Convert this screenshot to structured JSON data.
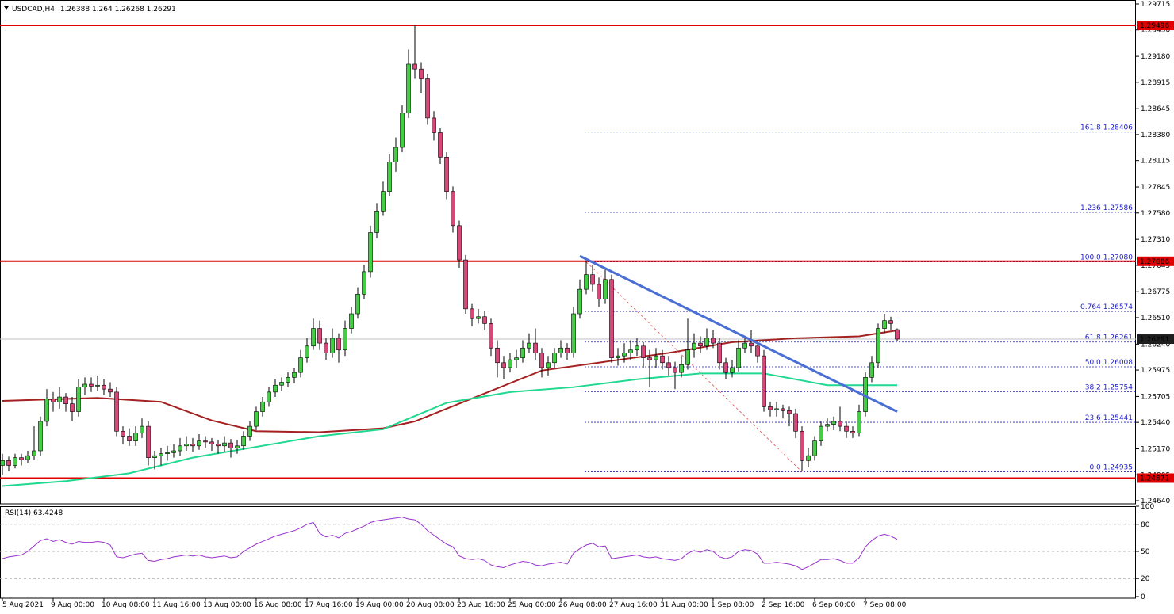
{
  "chart_data": {
    "type": "candlestick",
    "symbol": "USDCAD,H4",
    "up_color": "#44cc44",
    "down_color": "#d9467a",
    "ylim": [
      1.2464,
      1.29715
    ],
    "yticks": [
      1.29715,
      {
        "value": 1.2945,
        "label": "1.29450"
      },
      {
        "value": 1.2918,
        "label": "1.29180"
      },
      1.28915,
      1.28645,
      {
        "value": 1.2838,
        "label": "1.28380"
      },
      1.28115,
      1.27845,
      {
        "value": 1.2758,
        "label": "1.27580"
      },
      {
        "value": 1.2731,
        "label": "1.27310"
      },
      1.27045,
      1.26775,
      {
        "value": 1.2651,
        "label": "1.26510"
      },
      {
        "value": 1.2624,
        "label": "1.26240"
      },
      1.25975,
      1.25705,
      {
        "value": 1.2544,
        "label": "1.25440"
      },
      {
        "value": 1.2517,
        "label": "1.25170"
      },
      1.24905,
      {
        "value": 1.2464,
        "label": "1.24640"
      }
    ],
    "categories": [
      "5 Aug 2021",
      null,
      null,
      null,
      null,
      null,
      null,
      null,
      "9 Aug 00:00",
      null,
      null,
      null,
      null,
      null,
      null,
      null,
      "10 Aug 08:00",
      null,
      null,
      null,
      null,
      null,
      null,
      null,
      "11 Aug 16:00",
      null,
      null,
      null,
      null,
      null,
      null,
      null,
      "13 Aug 00:00",
      null,
      null,
      null,
      null,
      null,
      null,
      null,
      "16 Aug 08:00",
      null,
      null,
      null,
      null,
      null,
      null,
      null,
      "17 Aug 16:00",
      null,
      null,
      null,
      null,
      null,
      null,
      null,
      "19 Aug 00:00",
      null,
      null,
      null,
      null,
      null,
      null,
      null,
      "20 Aug 08:00",
      null,
      null,
      null,
      null,
      null,
      null,
      null,
      "23 Aug 16:00",
      null,
      null,
      null,
      null,
      null,
      null,
      null,
      "25 Aug 00:00",
      null,
      null,
      null,
      null,
      null,
      null,
      null,
      "26 Aug 08:00",
      null,
      null,
      null,
      null,
      null,
      null,
      null,
      "27 Aug 16:00",
      null,
      null,
      null,
      null,
      null,
      null,
      null,
      "31 Aug 00:00",
      null,
      null,
      null,
      null,
      null,
      null,
      null,
      "1 Sep 08:00",
      null,
      null,
      null,
      null,
      null,
      null,
      null,
      "2 Sep 16:00",
      null,
      null,
      null,
      null,
      null,
      null,
      null,
      "6 Sep 00:00",
      null,
      null,
      null,
      null,
      null,
      null,
      null,
      "7 Sep 08:00",
      null,
      null,
      null,
      null,
      null
    ],
    "candles": [
      [
        1.25,
        1.2512,
        1.249,
        1.2505
      ],
      [
        1.2505,
        1.2509,
        1.2494,
        1.25
      ],
      [
        1.25,
        1.2512,
        1.2497,
        1.2508
      ],
      [
        1.2508,
        1.2512,
        1.25,
        1.2506
      ],
      [
        1.2506,
        1.2515,
        1.2502,
        1.251
      ],
      [
        1.251,
        1.254,
        1.2506,
        1.2515
      ],
      [
        1.2515,
        1.255,
        1.251,
        1.2545
      ],
      [
        1.2545,
        1.2578,
        1.254,
        1.2568
      ],
      [
        1.2568,
        1.2575,
        1.2555,
        1.2565
      ],
      [
        1.2565,
        1.258,
        1.2558,
        1.257
      ],
      [
        1.257,
        1.2574,
        1.2555,
        1.2563
      ],
      [
        1.2563,
        1.257,
        1.2545,
        1.2555
      ],
      [
        1.2555,
        1.2588,
        1.255,
        1.258
      ],
      [
        1.258,
        1.259,
        1.2572,
        1.2583
      ],
      [
        1.2583,
        1.259,
        1.2575,
        1.2581
      ],
      [
        1.2581,
        1.2592,
        1.2576,
        1.2582
      ],
      [
        1.2582,
        1.2588,
        1.2572,
        1.2578
      ],
      [
        1.2578,
        1.2585,
        1.257,
        1.2575
      ],
      [
        1.2575,
        1.258,
        1.253,
        1.2535
      ],
      [
        1.2535,
        1.254,
        1.2522,
        1.253
      ],
      [
        1.253,
        1.2538,
        1.252,
        1.2525
      ],
      [
        1.2525,
        1.254,
        1.252,
        1.2533
      ],
      [
        1.2533,
        1.2548,
        1.2528,
        1.254
      ],
      [
        1.254,
        1.2545,
        1.25,
        1.2508
      ],
      [
        1.2508,
        1.2515,
        1.2496,
        1.251
      ],
      [
        1.251,
        1.2518,
        1.25,
        1.2512
      ],
      [
        1.2512,
        1.252,
        1.2505,
        1.2513
      ],
      [
        1.2513,
        1.2522,
        1.2508,
        1.2515
      ],
      [
        1.2515,
        1.2528,
        1.251,
        1.252
      ],
      [
        1.252,
        1.253,
        1.2515,
        1.2522
      ],
      [
        1.2522,
        1.2528,
        1.2514,
        1.252
      ],
      [
        1.252,
        1.2532,
        1.2516,
        1.2525
      ],
      [
        1.2525,
        1.253,
        1.2518,
        1.2524
      ],
      [
        1.2524,
        1.2528,
        1.2515,
        1.2522
      ],
      [
        1.2522,
        1.2526,
        1.2512,
        1.252
      ],
      [
        1.252,
        1.253,
        1.2514,
        1.2523
      ],
      [
        1.2523,
        1.2527,
        1.2508,
        1.2518
      ],
      [
        1.2518,
        1.2526,
        1.2512,
        1.252
      ],
      [
        1.252,
        1.2535,
        1.2516,
        1.253
      ],
      [
        1.253,
        1.2545,
        1.2525,
        1.254
      ],
      [
        1.254,
        1.256,
        1.2536,
        1.2555
      ],
      [
        1.2555,
        1.257,
        1.255,
        1.2565
      ],
      [
        1.2565,
        1.258,
        1.256,
        1.2575
      ],
      [
        1.2575,
        1.2588,
        1.257,
        1.2582
      ],
      [
        1.2582,
        1.259,
        1.2576,
        1.2585
      ],
      [
        1.2585,
        1.2595,
        1.258,
        1.259
      ],
      [
        1.259,
        1.26,
        1.2584,
        1.2595
      ],
      [
        1.2595,
        1.2618,
        1.259,
        1.261
      ],
      [
        1.261,
        1.263,
        1.2605,
        1.2622
      ],
      [
        1.2622,
        1.265,
        1.2618,
        1.264
      ],
      [
        1.264,
        1.2648,
        1.2618,
        1.2625
      ],
      [
        1.2625,
        1.263,
        1.2608,
        1.2615
      ],
      [
        1.2615,
        1.264,
        1.261,
        1.263
      ],
      [
        1.263,
        1.2635,
        1.2605,
        1.2618
      ],
      [
        1.2618,
        1.2648,
        1.2612,
        1.264
      ],
      [
        1.264,
        1.2662,
        1.2635,
        1.2655
      ],
      [
        1.2655,
        1.2682,
        1.265,
        1.2675
      ],
      [
        1.2675,
        1.2705,
        1.267,
        1.2698
      ],
      [
        1.2698,
        1.2745,
        1.2692,
        1.2738
      ],
      [
        1.2738,
        1.2768,
        1.2732,
        1.276
      ],
      [
        1.276,
        1.279,
        1.2755,
        1.278
      ],
      [
        1.278,
        1.2818,
        1.2775,
        1.281
      ],
      [
        1.281,
        1.2835,
        1.28,
        1.2825
      ],
      [
        1.2825,
        1.2868,
        1.282,
        1.286
      ],
      [
        1.286,
        1.2925,
        1.2855,
        1.291
      ],
      [
        1.291,
        1.295,
        1.2895,
        1.2905
      ],
      [
        1.2905,
        1.2912,
        1.288,
        1.2895
      ],
      [
        1.2895,
        1.29,
        1.2848,
        1.2855
      ],
      [
        1.2855,
        1.2862,
        1.2832,
        1.284
      ],
      [
        1.284,
        1.2845,
        1.2808,
        1.2815
      ],
      [
        1.2815,
        1.282,
        1.2772,
        1.278
      ],
      [
        1.278,
        1.2785,
        1.2738,
        1.2745
      ],
      [
        1.2745,
        1.275,
        1.2702,
        1.271
      ],
      [
        1.271,
        1.2715,
        1.2655,
        1.266
      ],
      [
        1.266,
        1.2665,
        1.2642,
        1.265
      ],
      [
        1.265,
        1.266,
        1.2645,
        1.2652
      ],
      [
        1.2652,
        1.2658,
        1.2638,
        1.2645
      ],
      [
        1.2645,
        1.265,
        1.2612,
        1.262
      ],
      [
        1.262,
        1.2628,
        1.259,
        1.2605
      ],
      [
        1.2605,
        1.2612,
        1.2588,
        1.26
      ],
      [
        1.26,
        1.2615,
        1.2595,
        1.2608
      ],
      [
        1.2608,
        1.2618,
        1.26,
        1.261
      ],
      [
        1.261,
        1.2628,
        1.2605,
        1.262
      ],
      [
        1.262,
        1.2635,
        1.2615,
        1.2625
      ],
      [
        1.2625,
        1.264,
        1.2608,
        1.2615
      ],
      [
        1.2615,
        1.262,
        1.259,
        1.26
      ],
      [
        1.26,
        1.2612,
        1.2592,
        1.2605
      ],
      [
        1.2605,
        1.262,
        1.26,
        1.2615
      ],
      [
        1.2615,
        1.2628,
        1.261,
        1.262
      ],
      [
        1.262,
        1.2625,
        1.2608,
        1.2615
      ],
      [
        1.2615,
        1.2662,
        1.261,
        1.2655
      ],
      [
        1.2655,
        1.269,
        1.265,
        1.268
      ],
      [
        1.268,
        1.2708,
        1.2675,
        1.2695
      ],
      [
        1.2695,
        1.2705,
        1.2678,
        1.2685
      ],
      [
        1.2685,
        1.2692,
        1.2662,
        1.267
      ],
      [
        1.267,
        1.27,
        1.2665,
        1.269
      ],
      [
        1.269,
        1.2695,
        1.2605,
        1.261
      ],
      [
        1.261,
        1.262,
        1.2602,
        1.2612
      ],
      [
        1.2612,
        1.2625,
        1.2605,
        1.2615
      ],
      [
        1.2615,
        1.2628,
        1.2608,
        1.2618
      ],
      [
        1.2618,
        1.263,
        1.2612,
        1.2622
      ],
      [
        1.2622,
        1.2626,
        1.26,
        1.261
      ],
      [
        1.261,
        1.2618,
        1.258,
        1.2608
      ],
      [
        1.2608,
        1.262,
        1.26,
        1.2612
      ],
      [
        1.2612,
        1.2618,
        1.2598,
        1.2605
      ],
      [
        1.2605,
        1.2612,
        1.2592,
        1.26
      ],
      [
        1.26,
        1.2606,
        1.2578,
        1.2595
      ],
      [
        1.2595,
        1.2612,
        1.259,
        1.2603
      ],
      [
        1.2603,
        1.265,
        1.2598,
        1.2618
      ],
      [
        1.2618,
        1.2635,
        1.261,
        1.2625
      ],
      [
        1.2625,
        1.2632,
        1.2615,
        1.2622
      ],
      [
        1.2622,
        1.264,
        1.2618,
        1.263
      ],
      [
        1.263,
        1.2638,
        1.262,
        1.2625
      ],
      [
        1.2625,
        1.263,
        1.2598,
        1.2605
      ],
      [
        1.2605,
        1.261,
        1.2588,
        1.2595
      ],
      [
        1.2595,
        1.2608,
        1.259,
        1.26
      ],
      [
        1.26,
        1.2628,
        1.2596,
        1.262
      ],
      [
        1.262,
        1.2632,
        1.2615,
        1.2625
      ],
      [
        1.2625,
        1.2638,
        1.2615,
        1.2622
      ],
      [
        1.2622,
        1.2628,
        1.2605,
        1.2612
      ],
      [
        1.2612,
        1.2618,
        1.2555,
        1.256
      ],
      [
        1.256,
        1.2565,
        1.255,
        1.2557
      ],
      [
        1.2557,
        1.2565,
        1.255,
        1.2558
      ],
      [
        1.2558,
        1.2562,
        1.2548,
        1.2556
      ],
      [
        1.2556,
        1.256,
        1.254,
        1.2553
      ],
      [
        1.2553,
        1.2558,
        1.2528,
        1.2535
      ],
      [
        1.2535,
        1.254,
        1.2494,
        1.2505
      ],
      [
        1.2505,
        1.2518,
        1.2498,
        1.251
      ],
      [
        1.251,
        1.253,
        1.2505,
        1.2525
      ],
      [
        1.2525,
        1.2545,
        1.252,
        1.254
      ],
      [
        1.254,
        1.2548,
        1.2535,
        1.2542
      ],
      [
        1.2542,
        1.255,
        1.2536,
        1.2545
      ],
      [
        1.2545,
        1.256,
        1.2535,
        1.254
      ],
      [
        1.254,
        1.2545,
        1.2528,
        1.2535
      ],
      [
        1.2535,
        1.254,
        1.2528,
        1.2533
      ],
      [
        1.2533,
        1.2562,
        1.253,
        1.2555
      ],
      [
        1.2555,
        1.2595,
        1.255,
        1.259
      ],
      [
        1.259,
        1.2612,
        1.2585,
        1.2605
      ],
      [
        1.2605,
        1.2645,
        1.26,
        1.264
      ],
      [
        1.264,
        1.2655,
        1.2635,
        1.2648
      ],
      [
        1.2648,
        1.2652,
        1.2638,
        1.2645
      ],
      [
        1.26388,
        1.264,
        1.26268,
        1.26291
      ]
    ],
    "levels": [
      {
        "value": 1.29496,
        "color": "#e00000"
      },
      {
        "value": 1.27086,
        "color": "#e00000"
      },
      {
        "value": 1.24871,
        "color": "#e00000"
      }
    ],
    "fib": {
      "color": "#1c1ccf",
      "line_color": "#e05050",
      "anchor": [
        92,
        126
      ],
      "levels": [
        {
          "label": "161.8",
          "price": 1.28406
        },
        {
          "label": "1.236",
          "price": 1.27586
        },
        {
          "label": "100.0",
          "price": {
            "value": 1.2708,
            "label": "1.27080"
          }
        },
        {
          "label": "0.764",
          "price": 1.26574
        },
        {
          "label": "61.8",
          "price": 1.26261
        },
        {
          "label": "50.0",
          "price": 1.26008
        },
        {
          "label": "38.2",
          "price": 1.25754
        },
        {
          "label": "23.6",
          "price": 1.25441
        },
        {
          "label": "0.0",
          "price": 1.24935
        }
      ]
    },
    "moving_averages": [
      {
        "color": "#a52020",
        "x": [
          0,
          15,
          25,
          33,
          40,
          50,
          60,
          65,
          75,
          85,
          95,
          105,
          115,
          125,
          135,
          141
        ],
        "values": [
          1.2566,
          1.2569,
          1.2565,
          1.2546,
          1.2535,
          1.2534,
          1.2538,
          1.2545,
          1.2571,
          1.2597,
          1.2606,
          1.2615,
          1.2626,
          1.263,
          1.2632,
          1.2638
        ]
      },
      {
        "color": "#20d890",
        "x": [
          0,
          10,
          20,
          30,
          40,
          50,
          60,
          70,
          80,
          90,
          100,
          110,
          120,
          130,
          141
        ],
        "values": [
          1.2479,
          1.2484,
          1.2492,
          1.2508,
          1.2519,
          1.253,
          1.2537,
          1.2564,
          1.2575,
          1.258,
          1.2588,
          1.2594,
          1.2594,
          1.2582,
          1.2582
        ]
      }
    ],
    "trendline": {
      "color": "#4a6fd4",
      "x": [
        91,
        141
      ],
      "values": [
        1.2714,
        1.2555
      ]
    },
    "indicator": {
      "type": "line",
      "title": "RSI(14)",
      "color": "#9932cc",
      "ylim": [
        0,
        100
      ],
      "yticks": [
        0,
        20,
        50,
        80,
        100
      ],
      "values": [
        42,
        44,
        45,
        46,
        50,
        56,
        62,
        64,
        61,
        63,
        60,
        58,
        61,
        60,
        60,
        61,
        60,
        57,
        44,
        43,
        45,
        47,
        48,
        40,
        39,
        41,
        42,
        44,
        45,
        46,
        45,
        46,
        44,
        43,
        44,
        45,
        43,
        44,
        50,
        54,
        58,
        61,
        64,
        67,
        69,
        71,
        73,
        76,
        80,
        82,
        70,
        66,
        68,
        65,
        70,
        72,
        75,
        78,
        82,
        84,
        85,
        86,
        87,
        88,
        86,
        85,
        80,
        73,
        68,
        63,
        58,
        55,
        45,
        42,
        41,
        42,
        40,
        35,
        33,
        32,
        35,
        37,
        39,
        38,
        35,
        34,
        36,
        37,
        38,
        36,
        48,
        53,
        57,
        59,
        55,
        56,
        42,
        43,
        44,
        45,
        46,
        44,
        43,
        44,
        42,
        41,
        40,
        42,
        48,
        51,
        49,
        52,
        50,
        44,
        42,
        44,
        50,
        52,
        51,
        47,
        37,
        37,
        38,
        37,
        36,
        34,
        30,
        33,
        37,
        41,
        41,
        42,
        40,
        37,
        37,
        43,
        55,
        62,
        67,
        69,
        67,
        63.4248
      ]
    }
  }
}
